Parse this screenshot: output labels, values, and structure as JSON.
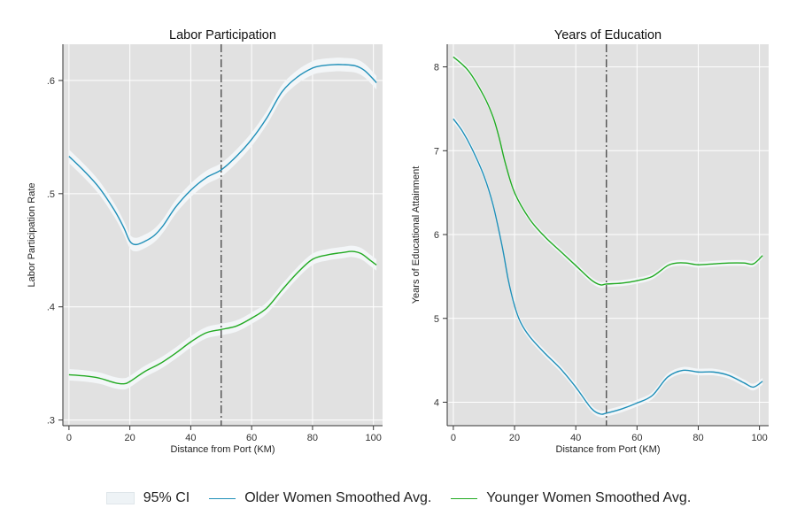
{
  "colors": {
    "older": "#1f8fb8",
    "younger": "#22aa22",
    "ci": "#f3f6f8",
    "plot_bg": "#e1e1e1",
    "grid": "#ffffff",
    "cutoff": "#444444"
  },
  "legend": {
    "ci_label": "95% CI",
    "older_label": "Older Women Smoothed Avg.",
    "younger_label": "Younger Women Smoothed Avg."
  },
  "chart_data": [
    {
      "type": "line",
      "title": "Labor Participation",
      "xlabel": "Distance from Port (KM)",
      "ylabel": "Labor Participation Rate",
      "xlim": [
        -2,
        103
      ],
      "ylim": [
        0.295,
        0.632
      ],
      "xticks": [
        0,
        20,
        40,
        60,
        80,
        100
      ],
      "xtick_labels": [
        "0",
        "20",
        "40",
        "60",
        "80",
        "100"
      ],
      "yticks": [
        0.3,
        0.4,
        0.5,
        0.6
      ],
      "ytick_labels": [
        ".3",
        ".4",
        ".5",
        ".6"
      ],
      "cutoff_x": 50,
      "grid": true,
      "legend_position": "bottom",
      "series": [
        {
          "key": "older",
          "x": [
            0,
            5,
            10,
            15,
            18,
            20,
            22,
            25,
            28,
            31,
            35,
            40,
            45,
            50,
            55,
            60,
            65,
            70,
            75,
            80,
            83,
            87,
            90,
            94,
            97,
            100,
            101
          ],
          "y": [
            0.533,
            0.52,
            0.505,
            0.485,
            0.47,
            0.458,
            0.455,
            0.458,
            0.463,
            0.472,
            0.488,
            0.503,
            0.514,
            0.521,
            0.533,
            0.548,
            0.567,
            0.59,
            0.603,
            0.611,
            0.613,
            0.614,
            0.614,
            0.613,
            0.609,
            0.601,
            0.598
          ],
          "ci": 0.006
        },
        {
          "key": "younger",
          "x": [
            0,
            5,
            10,
            15,
            18,
            20,
            25,
            30,
            35,
            40,
            45,
            50,
            55,
            60,
            65,
            70,
            75,
            80,
            85,
            90,
            93,
            96,
            99,
            101
          ],
          "y": [
            0.34,
            0.339,
            0.337,
            0.333,
            0.332,
            0.334,
            0.343,
            0.35,
            0.359,
            0.369,
            0.377,
            0.38,
            0.383,
            0.39,
            0.399,
            0.415,
            0.43,
            0.442,
            0.446,
            0.448,
            0.449,
            0.447,
            0.441,
            0.437
          ],
          "ci": 0.005
        }
      ]
    },
    {
      "type": "line",
      "title": "Years of Education",
      "xlabel": "Distance from Port (KM)",
      "ylabel": "Years of Educational Attainment",
      "xlim": [
        -2,
        103
      ],
      "ylim": [
        3.72,
        8.27
      ],
      "xticks": [
        0,
        20,
        40,
        60,
        80,
        100
      ],
      "xtick_labels": [
        "0",
        "20",
        "40",
        "60",
        "80",
        "100"
      ],
      "yticks": [
        4,
        5,
        6,
        7,
        8
      ],
      "ytick_labels": [
        "4",
        "5",
        "6",
        "7",
        "8"
      ],
      "cutoff_x": 50,
      "grid": true,
      "legend_position": "bottom",
      "series": [
        {
          "key": "older",
          "x": [
            0,
            3,
            6,
            10,
            13,
            16,
            18,
            20,
            22,
            25,
            30,
            35,
            40,
            45,
            48,
            50,
            55,
            60,
            65,
            70,
            75,
            80,
            85,
            90,
            95,
            98,
            101
          ],
          "y": [
            7.38,
            7.23,
            7.03,
            6.7,
            6.35,
            5.85,
            5.45,
            5.15,
            4.95,
            4.78,
            4.58,
            4.4,
            4.18,
            3.93,
            3.86,
            3.87,
            3.92,
            3.99,
            4.08,
            4.3,
            4.38,
            4.36,
            4.36,
            4.32,
            4.23,
            4.18,
            4.25
          ],
          "ci": 0.04
        },
        {
          "key": "younger",
          "x": [
            0,
            5,
            10,
            13,
            15,
            17,
            20,
            25,
            30,
            35,
            40,
            45,
            48,
            50,
            55,
            60,
            65,
            70,
            73,
            76,
            80,
            85,
            90,
            95,
            98,
            101
          ],
          "y": [
            8.12,
            7.95,
            7.65,
            7.4,
            7.15,
            6.85,
            6.5,
            6.18,
            5.97,
            5.8,
            5.63,
            5.46,
            5.4,
            5.41,
            5.42,
            5.45,
            5.5,
            5.63,
            5.66,
            5.66,
            5.64,
            5.65,
            5.66,
            5.66,
            5.65,
            5.75
          ],
          "ci": 0.035
        }
      ]
    }
  ]
}
